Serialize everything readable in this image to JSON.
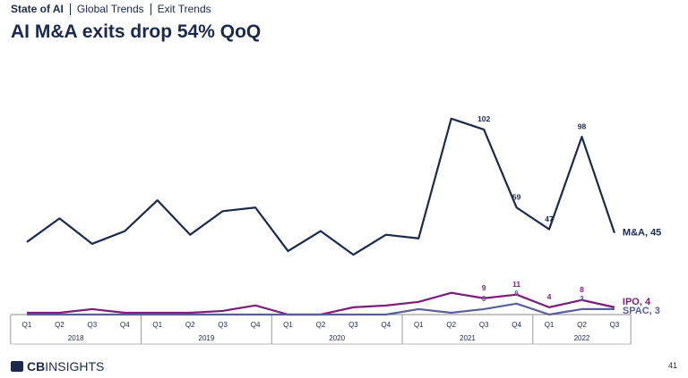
{
  "header": {
    "breadcrumb": [
      "State of AI",
      "Global Trends",
      "Exit Trends"
    ]
  },
  "footer": {
    "brand_bold": "CB",
    "brand": "INSIGHTS",
    "page_number": "41"
  },
  "chart_data": {
    "type": "line",
    "title": "AI M&A exits drop 54% QoQ",
    "categories": [
      "Q1",
      "Q2",
      "Q3",
      "Q4",
      "Q1",
      "Q2",
      "Q3",
      "Q4",
      "Q1",
      "Q2",
      "Q3",
      "Q4",
      "Q1",
      "Q2",
      "Q3",
      "Q4",
      "Q1",
      "Q2",
      "Q3"
    ],
    "groups": [
      {
        "label": "2018",
        "count": 4
      },
      {
        "label": "2019",
        "count": 4
      },
      {
        "label": "2020",
        "count": 4
      },
      {
        "label": "2021",
        "count": 4
      },
      {
        "label": "2022",
        "count": 3
      }
    ],
    "ylim": [
      0,
      110
    ],
    "series": [
      {
        "name": "M&A, 45",
        "color": "#1b2a4a",
        "values": [
          40,
          53,
          39,
          46,
          63,
          44,
          57,
          59,
          35,
          46,
          33,
          44,
          42,
          108,
          102,
          59,
          47,
          98,
          45
        ],
        "value_labels": [
          null,
          null,
          null,
          null,
          null,
          null,
          null,
          null,
          null,
          null,
          null,
          null,
          null,
          null,
          "102",
          "59",
          "47",
          "98",
          null
        ]
      },
      {
        "name": "IPO, 4",
        "color": "#7b1e7a",
        "values": [
          1,
          1,
          3,
          1,
          1,
          1,
          2,
          5,
          0,
          0,
          4,
          5,
          7,
          12,
          9,
          11,
          4,
          8,
          4
        ],
        "value_labels": [
          null,
          null,
          null,
          null,
          null,
          null,
          null,
          null,
          null,
          null,
          null,
          null,
          null,
          null,
          "9",
          "11",
          "4",
          "8",
          null
        ]
      },
      {
        "name": "SPAC, 3",
        "color": "#5a5f9a",
        "values": [
          0,
          0,
          0,
          0,
          0,
          0,
          0,
          0,
          0,
          0,
          0,
          0,
          3,
          1,
          3,
          6,
          0,
          3,
          3
        ],
        "value_labels": [
          null,
          null,
          null,
          null,
          null,
          null,
          null,
          null,
          null,
          null,
          null,
          null,
          null,
          null,
          "3",
          "6",
          null,
          "3",
          null
        ]
      }
    ]
  }
}
